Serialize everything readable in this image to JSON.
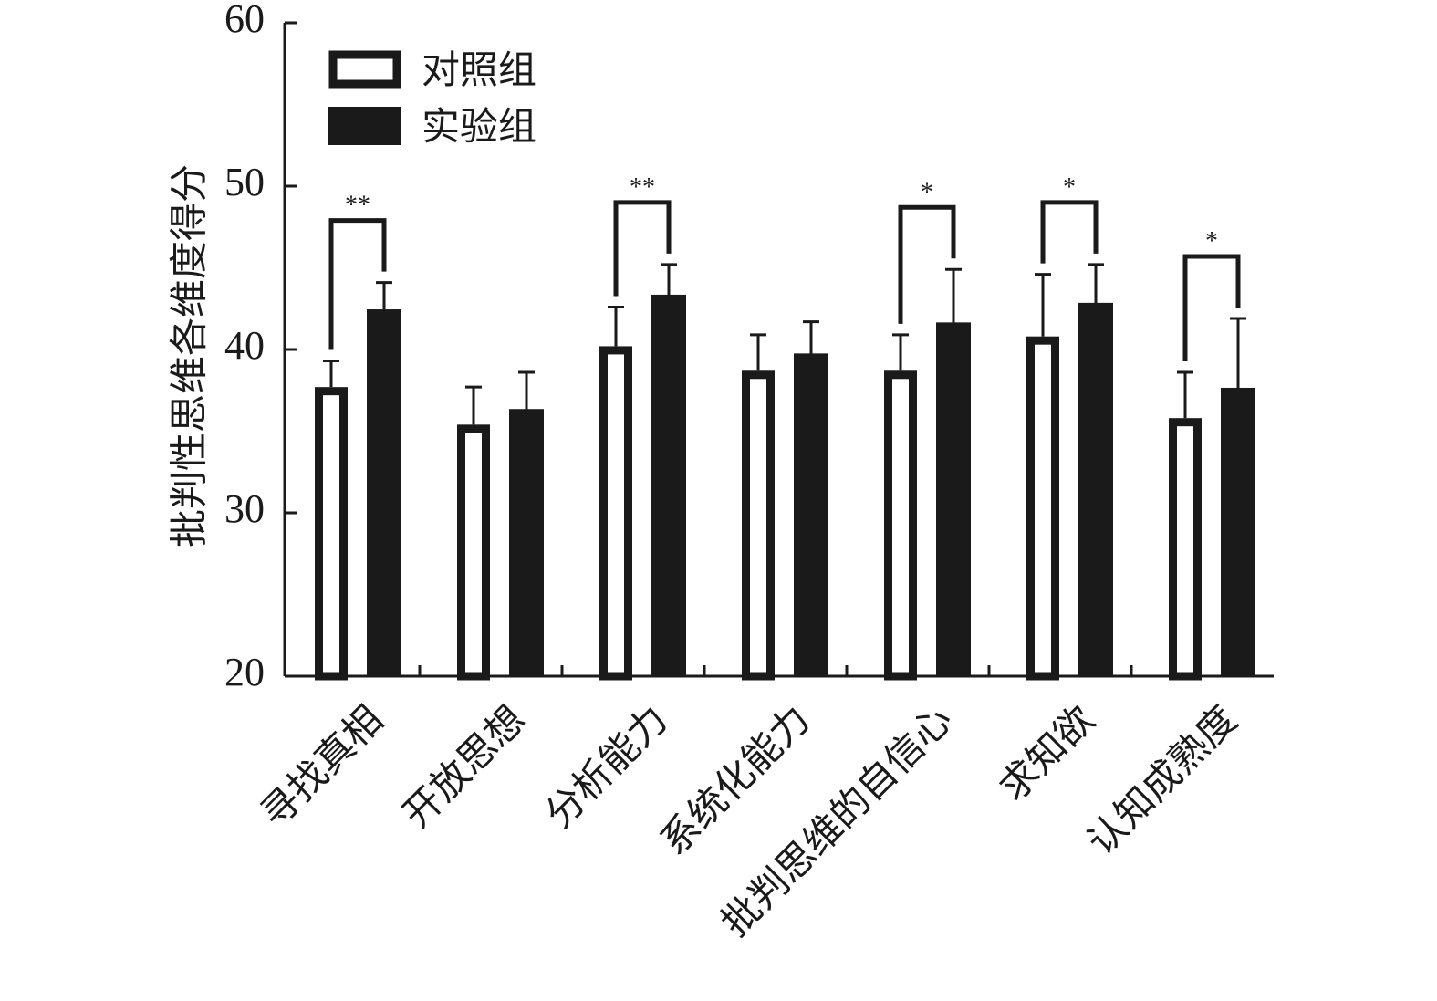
{
  "chart_data": {
    "type": "bar",
    "ylabel": "批判性思维各维度得分",
    "xlabel": "",
    "ylim": [
      20,
      60
    ],
    "yticks": [
      20,
      30,
      40,
      50,
      60
    ],
    "legend_position": "top-left",
    "categories": [
      "寻找真相",
      "开放思想",
      "分析能力",
      "系统化能力",
      "批判思维的自信心",
      "求知欲",
      "认知成熟度"
    ],
    "series": [
      {
        "name": "对照组",
        "color": "#ffffff",
        "values": [
          37.7,
          35.4,
          40.2,
          38.7,
          38.7,
          40.8,
          35.8
        ],
        "error": [
          1.6,
          2.3,
          2.4,
          2.2,
          2.2,
          3.8,
          2.8
        ]
      },
      {
        "name": "实验组",
        "color": "#1a1a1a",
        "values": [
          42.4,
          36.3,
          43.3,
          39.7,
          41.6,
          42.8,
          37.6
        ],
        "error": [
          1.7,
          2.3,
          1.9,
          2.0,
          3.3,
          2.4,
          4.3
        ]
      }
    ],
    "significance": [
      {
        "category": 0,
        "label": "**"
      },
      {
        "category": 2,
        "label": "**"
      },
      {
        "category": 4,
        "label": "*"
      },
      {
        "category": 5,
        "label": "*"
      },
      {
        "category": 6,
        "label": "*"
      }
    ]
  }
}
